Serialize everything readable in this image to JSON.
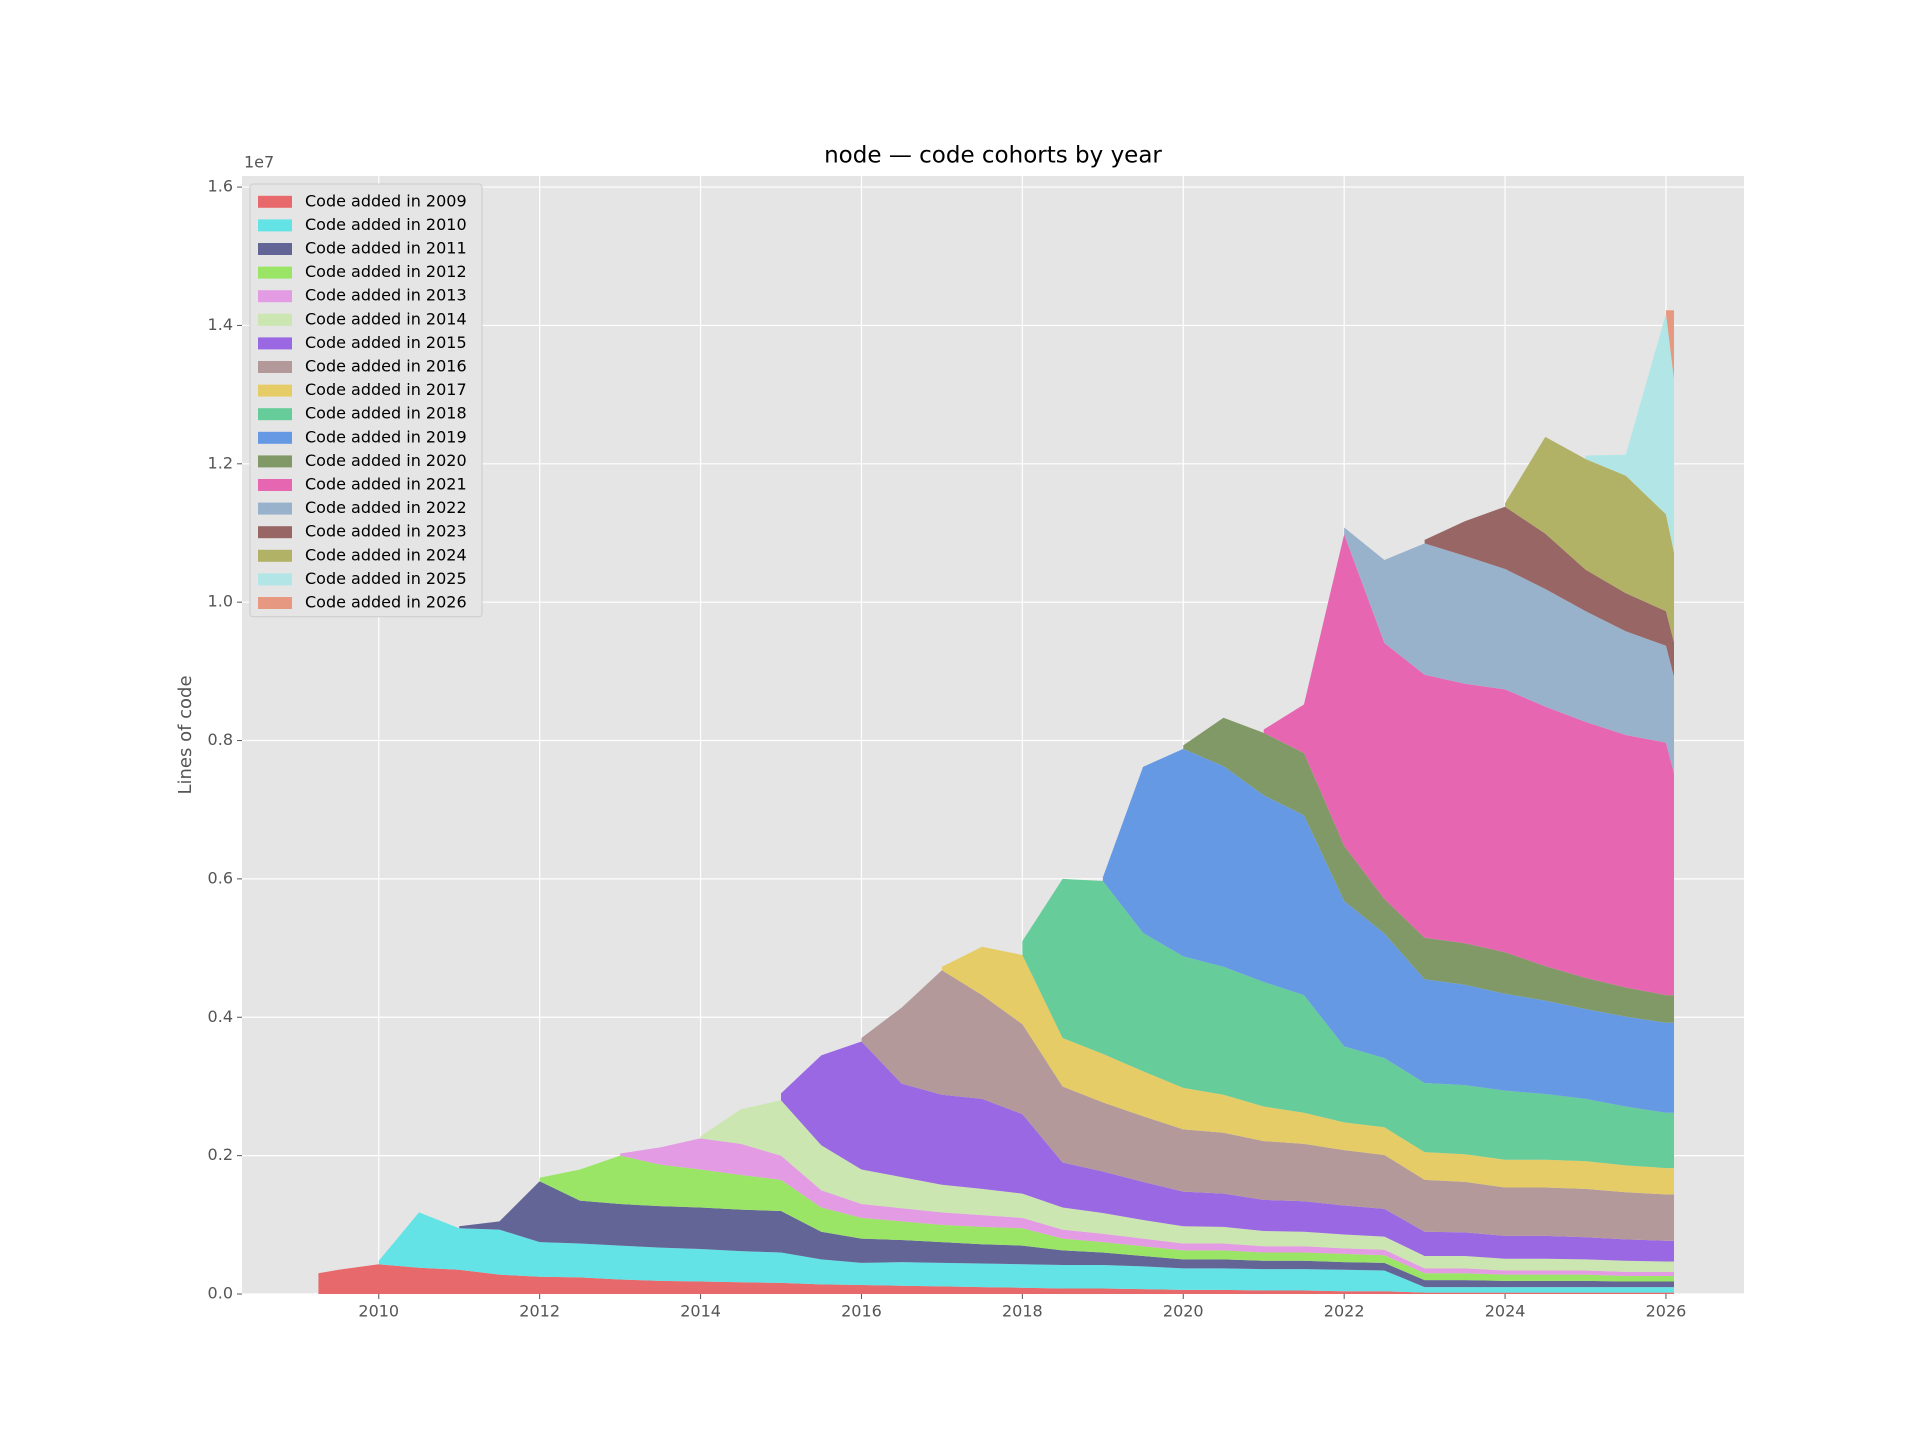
{
  "chart_data": {
    "type": "stacked_area",
    "title": "node — code cohorts by year",
    "ylabel": "Lines of code",
    "y_offset_label": "1e7",
    "x": [
      2009.25,
      2009.5,
      2010,
      2010.5,
      2011,
      2011.5,
      2012,
      2012.5,
      2013,
      2013.5,
      2014,
      2014.5,
      2015,
      2015.5,
      2016,
      2016.5,
      2017,
      2017.5,
      2018,
      2018.5,
      2019,
      2019.5,
      2020,
      2020.5,
      2021,
      2021.5,
      2022,
      2022.5,
      2023,
      2023.5,
      2024,
      2024.5,
      2025,
      2025.5,
      2026,
      2026.1
    ],
    "xlim": [
      2008.3,
      2026.97
    ],
    "xticks": [
      2010,
      2012,
      2014,
      2016,
      2018,
      2020,
      2022,
      2024,
      2026
    ],
    "ylim": [
      0,
      1.616
    ],
    "yticks": [
      {
        "value": 0,
        "label": "0.0"
      },
      0.2,
      0.4,
      0.6,
      0.8,
      {
        "value": 1,
        "label": "1.0"
      },
      1.2,
      1.4,
      1.6
    ],
    "grid": true,
    "legend": "upper left",
    "series": [
      {
        "name": "Code added in 2009",
        "color": "#e8696b",
        "values": [
          0.03,
          0.035,
          0.043,
          0.038,
          0.035,
          0.028,
          0.025,
          0.024,
          0.021,
          0.019,
          0.018,
          0.017,
          0.016,
          0.014,
          0.013,
          0.012,
          0.011,
          0.01,
          0.009,
          0.008,
          0.008,
          0.007,
          0.006,
          0.006,
          0.005,
          0.005,
          0.004,
          0.004,
          0.002,
          0.002,
          0.002,
          0.002,
          0.002,
          0.002,
          0.002,
          0.002
        ]
      },
      {
        "name": "Code added in 2010",
        "color": "#63e3e5",
        "values": [
          null,
          null,
          0.005,
          0.08,
          0.06,
          0.065,
          0.05,
          0.049,
          0.049,
          0.048,
          0.047,
          0.045,
          0.044,
          0.036,
          0.032,
          0.034,
          0.034,
          0.034,
          0.034,
          0.034,
          0.034,
          0.033,
          0.031,
          0.031,
          0.031,
          0.031,
          0.031,
          0.03,
          0.008,
          0.008,
          0.008,
          0.008,
          0.008,
          0.008,
          0.008,
          0.008
        ]
      },
      {
        "name": "Code added in 2011",
        "color": "#636596",
        "values": [
          null,
          null,
          null,
          null,
          0.003,
          0.012,
          0.088,
          0.062,
          0.06,
          0.06,
          0.06,
          0.06,
          0.06,
          0.04,
          0.035,
          0.032,
          0.03,
          0.028,
          0.027,
          0.021,
          0.018,
          0.015,
          0.013,
          0.013,
          0.012,
          0.012,
          0.011,
          0.011,
          0.01,
          0.01,
          0.009,
          0.009,
          0.009,
          0.008,
          0.008,
          0.008
        ]
      },
      {
        "name": "Code added in 2012",
        "color": "#9be566",
        "values": [
          null,
          null,
          null,
          null,
          null,
          null,
          0.005,
          0.045,
          0.07,
          0.06,
          0.055,
          0.05,
          0.045,
          0.035,
          0.03,
          0.027,
          0.025,
          0.025,
          0.025,
          0.017,
          0.015,
          0.014,
          0.013,
          0.013,
          0.012,
          0.012,
          0.012,
          0.011,
          0.01,
          0.01,
          0.009,
          0.009,
          0.009,
          0.008,
          0.008,
          0.008
        ]
      },
      {
        "name": "Code added in 2013",
        "color": "#e39be3",
        "values": [
          null,
          null,
          null,
          null,
          null,
          null,
          null,
          null,
          0.003,
          0.025,
          0.045,
          0.045,
          0.035,
          0.025,
          0.02,
          0.019,
          0.018,
          0.017,
          0.015,
          0.013,
          0.012,
          0.011,
          0.01,
          0.01,
          0.009,
          0.009,
          0.008,
          0.008,
          0.007,
          0.007,
          0.006,
          0.006,
          0.006,
          0.006,
          0.006,
          0.006
        ]
      },
      {
        "name": "Code added in 2014",
        "color": "#cce6b1",
        "values": [
          null,
          null,
          null,
          null,
          null,
          null,
          null,
          null,
          null,
          null,
          0.003,
          0.05,
          0.08,
          0.065,
          0.05,
          0.045,
          0.04,
          0.038,
          0.035,
          0.032,
          0.03,
          0.027,
          0.025,
          0.024,
          0.022,
          0.021,
          0.02,
          0.019,
          0.018,
          0.018,
          0.017,
          0.017,
          0.016,
          0.016,
          0.015,
          0.015
        ]
      },
      {
        "name": "Code added in 2015",
        "color": "#9a68e3",
        "values": [
          null,
          null,
          null,
          null,
          null,
          null,
          null,
          null,
          null,
          null,
          null,
          null,
          0.01,
          0.13,
          0.185,
          0.135,
          0.13,
          0.13,
          0.115,
          0.065,
          0.06,
          0.055,
          0.05,
          0.048,
          0.045,
          0.044,
          0.042,
          0.04,
          0.035,
          0.034,
          0.033,
          0.033,
          0.032,
          0.031,
          0.03,
          0.03
        ]
      },
      {
        "name": "Code added in 2016",
        "color": "#b39999",
        "values": [
          null,
          null,
          null,
          null,
          null,
          null,
          null,
          null,
          null,
          null,
          null,
          null,
          null,
          null,
          0.005,
          0.11,
          0.18,
          0.15,
          0.13,
          0.11,
          0.1,
          0.095,
          0.09,
          0.088,
          0.085,
          0.083,
          0.08,
          0.078,
          0.075,
          0.073,
          0.07,
          0.07,
          0.07,
          0.068,
          0.067,
          0.067
        ]
      },
      {
        "name": "Code added in 2017",
        "color": "#e6cc66",
        "values": [
          null,
          null,
          null,
          null,
          null,
          null,
          null,
          null,
          null,
          null,
          null,
          null,
          null,
          null,
          null,
          null,
          0.005,
          0.07,
          0.1,
          0.07,
          0.07,
          0.065,
          0.06,
          0.055,
          0.05,
          0.045,
          0.04,
          0.04,
          0.04,
          0.04,
          0.04,
          0.04,
          0.04,
          0.039,
          0.038,
          0.038
        ]
      },
      {
        "name": "Code added in 2018",
        "color": "#66cc99",
        "values": [
          null,
          null,
          null,
          null,
          null,
          null,
          null,
          null,
          null,
          null,
          null,
          null,
          null,
          null,
          null,
          null,
          null,
          null,
          0.02,
          0.23,
          0.25,
          0.2,
          0.19,
          0.185,
          0.18,
          0.17,
          0.11,
          0.1,
          0.1,
          0.1,
          0.1,
          0.095,
          0.09,
          0.085,
          0.08,
          0.08
        ]
      },
      {
        "name": "Code added in 2019",
        "color": "#6699e3",
        "values": [
          null,
          null,
          null,
          null,
          null,
          null,
          null,
          null,
          null,
          null,
          null,
          null,
          null,
          null,
          null,
          null,
          null,
          null,
          null,
          null,
          0.005,
          0.24,
          0.3,
          0.29,
          0.27,
          0.26,
          0.21,
          0.18,
          0.15,
          0.145,
          0.14,
          0.135,
          0.13,
          0.13,
          0.13,
          0.13
        ]
      },
      {
        "name": "Code added in 2020",
        "color": "#809966",
        "values": [
          null,
          null,
          null,
          null,
          null,
          null,
          null,
          null,
          null,
          null,
          null,
          null,
          null,
          null,
          null,
          null,
          null,
          null,
          null,
          null,
          null,
          null,
          0.005,
          0.07,
          0.09,
          0.09,
          0.08,
          0.05,
          0.06,
          0.06,
          0.06,
          0.05,
          0.045,
          0.042,
          0.04,
          0.04
        ]
      },
      {
        "name": "Code added in 2021",
        "color": "#e666b2",
        "values": [
          null,
          null,
          null,
          null,
          null,
          null,
          null,
          null,
          null,
          null,
          null,
          null,
          null,
          null,
          null,
          null,
          null,
          null,
          null,
          null,
          null,
          null,
          null,
          null,
          0.005,
          0.07,
          0.45,
          0.37,
          0.38,
          0.375,
          0.38,
          0.375,
          0.37,
          0.365,
          0.365,
          0.32
        ]
      },
      {
        "name": "Code added in 2022",
        "color": "#99b2cc",
        "values": [
          null,
          null,
          null,
          null,
          null,
          null,
          null,
          null,
          null,
          null,
          null,
          null,
          null,
          null,
          null,
          null,
          null,
          null,
          null,
          null,
          null,
          null,
          null,
          null,
          null,
          null,
          0.01,
          0.12,
          0.19,
          0.185,
          0.174,
          0.17,
          0.16,
          0.15,
          0.14,
          0.14
        ]
      },
      {
        "name": "Code added in 2023",
        "color": "#996666",
        "values": [
          null,
          null,
          null,
          null,
          null,
          null,
          null,
          null,
          null,
          null,
          null,
          null,
          null,
          null,
          null,
          null,
          null,
          null,
          null,
          null,
          null,
          null,
          null,
          null,
          null,
          null,
          null,
          null,
          0.005,
          0.05,
          0.09,
          0.08,
          0.06,
          0.055,
          0.05,
          0.05
        ]
      },
      {
        "name": "Code added in 2024",
        "color": "#b2b266",
        "values": [
          null,
          null,
          null,
          null,
          null,
          null,
          null,
          null,
          null,
          null,
          null,
          null,
          null,
          null,
          null,
          null,
          null,
          null,
          null,
          null,
          null,
          null,
          null,
          null,
          null,
          null,
          null,
          null,
          null,
          null,
          0.005,
          0.14,
          0.16,
          0.17,
          0.14,
          0.13
        ]
      },
      {
        "name": "Code added in 2025",
        "color": "#b2e6e6",
        "values": [
          null,
          null,
          null,
          null,
          null,
          null,
          null,
          null,
          null,
          null,
          null,
          null,
          null,
          null,
          null,
          null,
          null,
          null,
          null,
          null,
          null,
          null,
          null,
          null,
          null,
          null,
          null,
          null,
          null,
          null,
          null,
          null,
          0.005,
          0.03,
          0.29,
          0.25
        ]
      },
      {
        "name": "Code added in 2026",
        "color": "#e69980",
        "values": [
          null,
          null,
          null,
          null,
          null,
          null,
          null,
          null,
          null,
          null,
          null,
          null,
          null,
          null,
          null,
          null,
          null,
          null,
          null,
          null,
          null,
          null,
          null,
          null,
          null,
          null,
          null,
          null,
          null,
          null,
          null,
          null,
          null,
          null,
          0.005,
          0.1
        ]
      }
    ]
  }
}
